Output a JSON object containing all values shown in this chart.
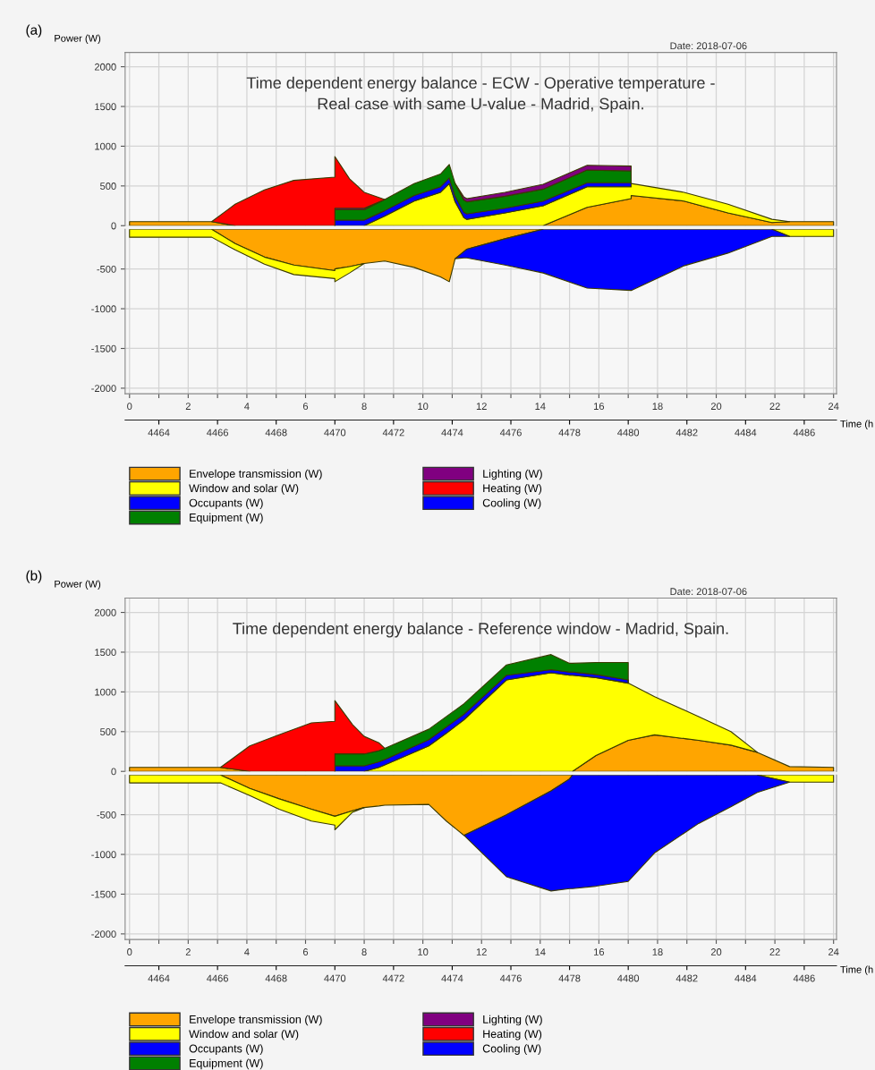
{
  "chart_data": [
    {
      "type": "area",
      "stacked": true,
      "tick_labels": "y",
      "title": "Time dependent energy balance - ECW - Operative temperature -\nReal case with same U-value - Madrid, Spain.",
      "ylabel": "Power (W)",
      "annotations": [
        "(a)",
        "Date: 2018-07-06"
      ],
      "grid": true,
      "legend": "bottom",
      "xlim": [
        -0.15,
        24.1
      ],
      "ylim": [
        0,
        2180
      ],
      "xticks": [
        0,
        {
          "value": 1,
          "label": null
        },
        2,
        {
          "value": 3,
          "label": null
        },
        4,
        {
          "value": 5,
          "label": null
        },
        6,
        {
          "value": 7,
          "label": null
        },
        8,
        {
          "value": 9,
          "label": null
        },
        10,
        {
          "value": 11,
          "label": null
        },
        12,
        {
          "value": 13,
          "label": null
        },
        14,
        {
          "value": 15,
          "label": null
        },
        16,
        {
          "value": 17,
          "label": null
        },
        18,
        {
          "value": 19,
          "label": null
        },
        20,
        {
          "value": 21,
          "label": null
        },
        22,
        {
          "value": 23,
          "label": null
        },
        24
      ],
      "yticks": [
        0,
        500,
        1000,
        1500,
        2000
      ],
      "x": [
        0,
        2.8,
        3.6,
        4.6,
        5.6,
        7,
        7,
        7.5,
        8,
        8.7,
        9.7,
        10.6,
        10.9,
        11.1,
        11.4,
        11.5,
        12.8,
        14.1,
        15.6,
        17.1,
        17.1,
        18.9,
        20.4,
        21.9,
        22.5,
        24
      ],
      "series": [
        {
          "name": "Envelope transmission (W)",
          "color": "#ffa500",
          "values": [
            50,
            50,
            0,
            null,
            null,
            null,
            null,
            null,
            null,
            null,
            null,
            null,
            null,
            null,
            null,
            null,
            null,
            0,
            230,
            340,
            380,
            310,
            160,
            40,
            50,
            50
          ]
        },
        {
          "name": "Window and solar (W)",
          "color": "#ffff00",
          "values": [
            null,
            null,
            null,
            null,
            null,
            null,
            null,
            null,
            0,
            120,
            310,
            420,
            530,
            300,
            100,
            80,
            160,
            250,
            260,
            150,
            150,
            110,
            110,
            40,
            0,
            null
          ]
        },
        {
          "name": "Occupants (W)",
          "color": "#0000ff",
          "values": [
            null,
            null,
            null,
            null,
            null,
            0,
            70,
            70,
            70,
            70,
            70,
            70,
            70,
            70,
            70,
            70,
            60,
            60,
            50,
            50,
            0,
            null,
            null,
            null,
            null,
            null
          ]
        },
        {
          "name": "Equipment (W)",
          "color": "#008000",
          "values": [
            null,
            null,
            null,
            null,
            null,
            0,
            130,
            130,
            130,
            140,
            150,
            160,
            170,
            160,
            150,
            150,
            150,
            150,
            160,
            150,
            0,
            null,
            null,
            null,
            null,
            null
          ]
        },
        {
          "name": "Lighting (W)",
          "color": "#800080",
          "values": [
            null,
            null,
            null,
            null,
            null,
            0,
            20,
            20,
            20,
            0,
            null,
            null,
            null,
            0,
            40,
            40,
            50,
            60,
            60,
            60,
            0,
            null,
            null,
            null,
            null,
            null
          ]
        },
        {
          "name": "Heating (W)",
          "color": "#ff0000",
          "values": [
            null,
            0,
            270,
            450,
            570,
            610,
            650,
            370,
            200,
            0,
            null,
            null,
            null,
            null,
            null,
            null,
            null,
            null,
            null,
            null,
            null,
            null,
            null,
            null,
            null,
            null
          ]
        }
      ]
    },
    {
      "type": "area",
      "stacked": true,
      "xlabel": "Time (h",
      "grid": true,
      "xlim": [
        -0.15,
        24.1
      ],
      "ylim": [
        -2070,
        0
      ],
      "xticks": [
        0,
        {
          "value": 1,
          "label": null
        },
        2,
        {
          "value": 3,
          "label": null
        },
        4,
        {
          "value": 5,
          "label": null
        },
        6,
        {
          "value": 7,
          "label": null
        },
        8,
        {
          "value": 9,
          "label": null
        },
        10,
        {
          "value": 11,
          "label": null
        },
        12,
        {
          "value": 13,
          "label": null
        },
        14,
        {
          "value": 15,
          "label": null
        },
        16,
        {
          "value": 17,
          "label": null
        },
        18,
        {
          "value": 19,
          "label": null
        },
        20,
        {
          "value": 21,
          "label": null
        },
        22,
        {
          "value": 23,
          "label": null
        },
        24
      ],
      "yticks": [
        -2000,
        -1500,
        -1000,
        -500
      ],
      "x2lim": [
        4462.85,
        4487.1
      ],
      "x2ticks": [
        4464,
        4466,
        4468,
        4470,
        4472,
        4474,
        4476,
        4478,
        4480,
        4482,
        4484,
        4486
      ],
      "x": [
        0,
        2.8,
        3.6,
        4.6,
        5.6,
        7,
        7,
        7.5,
        8,
        8.7,
        9.7,
        10.6,
        10.9,
        11.1,
        11.4,
        11.5,
        12.8,
        14.1,
        15.6,
        17.1,
        17.1,
        18.9,
        20.4,
        21.9,
        22.5,
        24
      ],
      "series": [
        {
          "color": "#ffa500",
          "values": [
            null,
            0,
            -180,
            -350,
            -450,
            -520,
            -500,
            -470,
            -430,
            -400,
            -480,
            -600,
            -660,
            -370,
            -280,
            -250,
            -120,
            0,
            null,
            null,
            null,
            null,
            null,
            null,
            null,
            null
          ]
        },
        {
          "color": "#ffff00",
          "values": [
            -100,
            -100,
            -80,
            -90,
            -120,
            -100,
            -160,
            -80,
            0,
            null,
            null,
            null,
            null,
            null,
            null,
            null,
            null,
            null,
            null,
            null,
            null,
            null,
            null,
            0,
            -90,
            -90
          ]
        },
        {
          "name": "Cooling (W)",
          "color": "#0000ff",
          "values": [
            null,
            null,
            null,
            null,
            null,
            null,
            null,
            null,
            null,
            null,
            null,
            null,
            null,
            0,
            -80,
            -110,
            -330,
            -550,
            -740,
            -770,
            -770,
            -460,
            -300,
            -90,
            0,
            null
          ]
        }
      ]
    },
    {
      "type": "area",
      "stacked": true,
      "tick_labels": "y",
      "title": "Time dependent energy balance - Reference window - Madrid, Spain.",
      "ylabel": "Power (W)",
      "annotations": [
        "(b)",
        "Date: 2018-07-06"
      ],
      "grid": true,
      "legend": "bottom",
      "xlim": [
        -0.15,
        24.1
      ],
      "ylim": [
        0,
        2180
      ],
      "xticks": [
        0,
        {
          "value": 1,
          "label": null
        },
        2,
        {
          "value": 3,
          "label": null
        },
        4,
        {
          "value": 5,
          "label": null
        },
        6,
        {
          "value": 7,
          "label": null
        },
        8,
        {
          "value": 9,
          "label": null
        },
        10,
        {
          "value": 11,
          "label": null
        },
        12,
        {
          "value": 13,
          "label": null
        },
        14,
        {
          "value": 15,
          "label": null
        },
        16,
        {
          "value": 17,
          "label": null
        },
        18,
        {
          "value": 19,
          "label": null
        },
        20,
        {
          "value": 21,
          "label": null
        },
        22,
        {
          "value": 23,
          "label": null
        },
        24
      ],
      "yticks": [
        0,
        500,
        1000,
        1500,
        2000
      ],
      "x": [
        0,
        3.1,
        4.1,
        5.1,
        6.2,
        7,
        7,
        7.6,
        8,
        8.5,
        8.7,
        10.2,
        10.8,
        11.4,
        12.85,
        14.37,
        15.0,
        15.1,
        15.9,
        17.0,
        17.0,
        17.9,
        19.4,
        20.5,
        21.4,
        22.5,
        24
      ],
      "series": [
        {
          "name": "Envelope transmission (W)",
          "color": "#ffa500",
          "values": [
            50,
            50,
            0,
            null,
            null,
            null,
            null,
            null,
            null,
            null,
            null,
            null,
            null,
            null,
            null,
            null,
            null,
            0,
            200,
            390,
            390,
            460,
            390,
            330,
            240,
            60,
            50
          ]
        },
        {
          "name": "Window and solar (W)",
          "color": "#ffff00",
          "values": [
            null,
            null,
            null,
            null,
            null,
            null,
            null,
            null,
            0,
            50,
            80,
            320,
            480,
            650,
            1150,
            1240,
            1210,
            1210,
            980,
            720,
            720,
            480,
            300,
            170,
            0,
            null,
            null
          ]
        },
        {
          "name": "Occupants (W)",
          "color": "#0000ff",
          "values": [
            null,
            null,
            null,
            null,
            null,
            0,
            70,
            70,
            70,
            70,
            70,
            80,
            80,
            70,
            60,
            40,
            40,
            40,
            40,
            40,
            0,
            null,
            null,
            null,
            null,
            null,
            null
          ]
        },
        {
          "name": "Equipment (W)",
          "color": "#008000",
          "values": [
            null,
            null,
            null,
            null,
            null,
            0,
            150,
            150,
            150,
            140,
            140,
            130,
            130,
            130,
            130,
            190,
            110,
            110,
            150,
            220,
            0,
            null,
            null,
            null,
            null,
            null,
            null
          ]
        },
        {
          "name": "Lighting (W)",
          "color": "#800080",
          "values": [
            null,
            null,
            null,
            null,
            null,
            null,
            null,
            null,
            null,
            null,
            null,
            null,
            null,
            null,
            null,
            null,
            null,
            null,
            null,
            null,
            null,
            null,
            null,
            null,
            null,
            null,
            null
          ]
        },
        {
          "name": "Heating (W)",
          "color": "#ff0000",
          "values": [
            null,
            0,
            320,
            460,
            610,
            630,
            670,
            370,
            220,
            100,
            0,
            null,
            null,
            null,
            null,
            null,
            null,
            null,
            null,
            null,
            null,
            null,
            null,
            null,
            null,
            null,
            null
          ]
        }
      ]
    },
    {
      "type": "area",
      "stacked": true,
      "xlabel": "Time (h",
      "grid": true,
      "xlim": [
        -0.15,
        24.1
      ],
      "ylim": [
        -2070,
        0
      ],
      "xticks": [
        0,
        {
          "value": 1,
          "label": null
        },
        2,
        {
          "value": 3,
          "label": null
        },
        4,
        {
          "value": 5,
          "label": null
        },
        6,
        {
          "value": 7,
          "label": null
        },
        8,
        {
          "value": 9,
          "label": null
        },
        10,
        {
          "value": 11,
          "label": null
        },
        12,
        {
          "value": 13,
          "label": null
        },
        14,
        {
          "value": 15,
          "label": null
        },
        16,
        {
          "value": 17,
          "label": null
        },
        18,
        {
          "value": 19,
          "label": null
        },
        20,
        {
          "value": 21,
          "label": null
        },
        22,
        {
          "value": 23,
          "label": null
        },
        24
      ],
      "yticks": [
        -2000,
        -1500,
        -1000,
        -500
      ],
      "x2lim": [
        4462.85,
        4487.1
      ],
      "x2ticks": [
        4464,
        4466,
        4468,
        4470,
        4472,
        4474,
        4476,
        4478,
        4480,
        4482,
        4484,
        4486
      ],
      "x": [
        0,
        3.1,
        4.1,
        5.1,
        6.2,
        7,
        7,
        7.6,
        8,
        8.5,
        8.7,
        10.2,
        10.8,
        11.4,
        12.85,
        14.37,
        15.0,
        15.1,
        15.9,
        17.0,
        17.0,
        17.9,
        19.4,
        20.5,
        21.4,
        22.5,
        24
      ],
      "series": [
        {
          "color": "#ffa500",
          "values": [
            null,
            0,
            -170,
            -300,
            -430,
            -520,
            -520,
            -450,
            -410,
            -390,
            -380,
            -370,
            -580,
            -760,
            -500,
            -200,
            -50,
            0,
            null,
            null,
            null,
            null,
            null,
            null,
            null,
            null,
            null
          ]
        },
        {
          "color": "#ffff00",
          "values": [
            -100,
            -100,
            -90,
            -130,
            -150,
            -110,
            -170,
            -20,
            0,
            null,
            null,
            null,
            null,
            null,
            null,
            null,
            null,
            null,
            null,
            null,
            null,
            null,
            null,
            null,
            0,
            -90,
            -90
          ]
        },
        {
          "name": "Cooling (W)",
          "color": "#0000ff",
          "values": [
            null,
            null,
            null,
            null,
            null,
            null,
            null,
            null,
            null,
            null,
            null,
            null,
            null,
            0,
            -780,
            -1260,
            -1380,
            -1430,
            -1400,
            -1340,
            -1340,
            -980,
            -610,
            -400,
            -220,
            0,
            null
          ]
        }
      ]
    }
  ]
}
